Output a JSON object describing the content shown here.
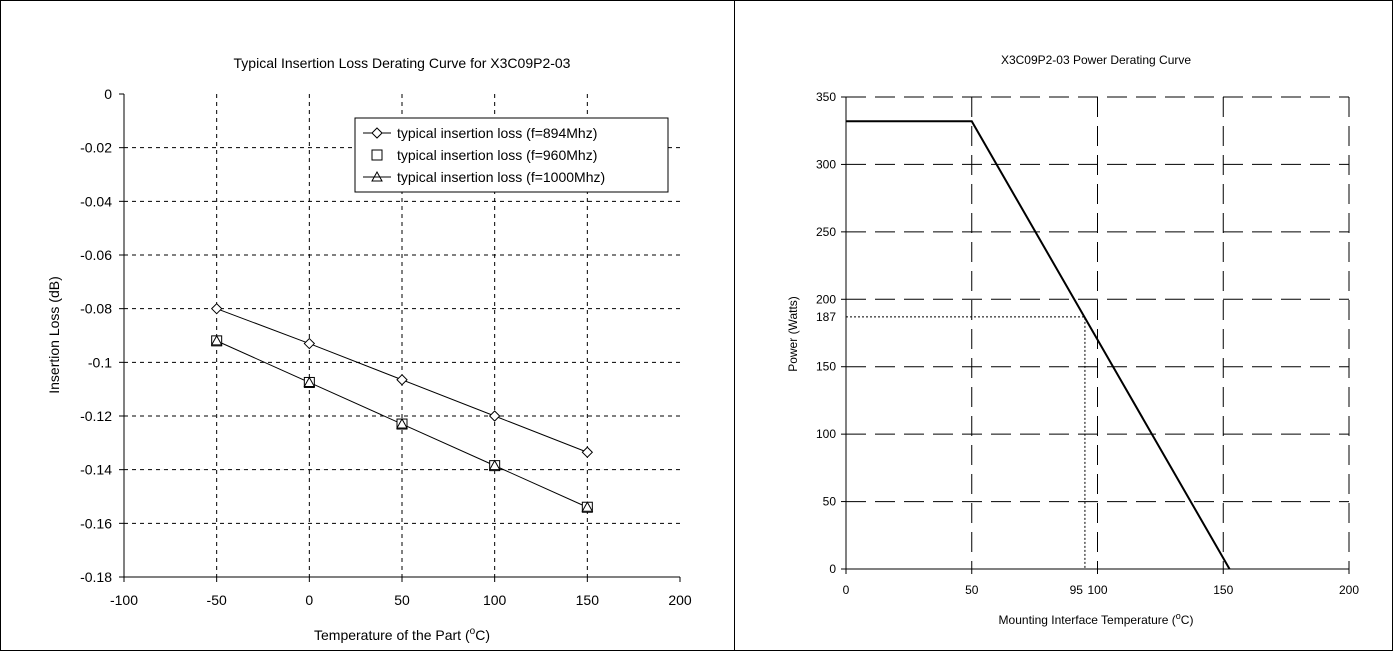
{
  "chart_data": [
    {
      "type": "line",
      "title": "Typical Insertion Loss Derating Curve for X3C09P2-03",
      "xlabel": "Temperature of the Part (",
      "xlabel_sup": "o",
      "xlabel_suffix": "C)",
      "ylabel": "Insertion Loss (dB)",
      "xlim": [
        -100,
        200
      ],
      "ylim": [
        -0.18,
        0
      ],
      "xticks": [
        -100,
        -50,
        0,
        50,
        100,
        150,
        200
      ],
      "xtick_labels": [
        "-100",
        "-50",
        "0",
        "50",
        "100",
        "150",
        "200"
      ],
      "yticks": [
        0,
        -0.02,
        -0.04,
        -0.06,
        -0.08,
        -0.1,
        -0.12,
        -0.14,
        -0.16,
        -0.18
      ],
      "ytick_labels": [
        "0",
        "-0.02",
        "-0.04",
        "-0.06",
        "-0.08",
        "-0.1",
        "-0.12",
        "-0.14",
        "-0.16",
        "-0.18"
      ],
      "grid": true,
      "legend_position": "top-right",
      "x": [
        -50,
        0,
        50,
        100,
        150
      ],
      "series": [
        {
          "name": "typical insertion loss (f=894Mhz)",
          "marker": "diamond",
          "values": [
            -0.08,
            -0.093,
            -0.1065,
            -0.12,
            -0.1335
          ]
        },
        {
          "name": "typical insertion loss (f=960Mhz)",
          "marker": "square",
          "values": [
            -0.092,
            -0.1075,
            -0.123,
            -0.1385,
            -0.154
          ]
        },
        {
          "name": "typical insertion loss (f=1000Mhz)",
          "marker": "triangle",
          "values": [
            -0.092,
            -0.1075,
            -0.123,
            -0.1385,
            -0.154
          ]
        }
      ]
    },
    {
      "type": "line",
      "title": "X3C09P2-03 Power Derating Curve",
      "xlabel": "Mounting Interface Temperature (",
      "xlabel_sup": "o",
      "xlabel_suffix": "C)",
      "ylabel": "Power (Watts)",
      "xlim": [
        0,
        200
      ],
      "ylim": [
        0,
        350
      ],
      "xticks": [
        0,
        50,
        100,
        150,
        200
      ],
      "xtick_labels": [
        "0",
        "50",
        "100",
        "150",
        "200"
      ],
      "yticks": [
        0,
        50,
        100,
        150,
        200,
        250,
        300,
        350
      ],
      "ytick_labels": [
        "0",
        "50",
        "100",
        "150",
        "200",
        "250",
        "300",
        "350"
      ],
      "extra_xtick": {
        "value": 95,
        "label": "95"
      },
      "extra_ytick": {
        "value": 187,
        "label": "187"
      },
      "grid": true,
      "series": [
        {
          "values_xy": [
            [
              0,
              332
            ],
            [
              50,
              332
            ],
            [
              152.5,
              0
            ]
          ]
        }
      ],
      "reference_point": {
        "x": 95,
        "y": 187
      }
    }
  ]
}
